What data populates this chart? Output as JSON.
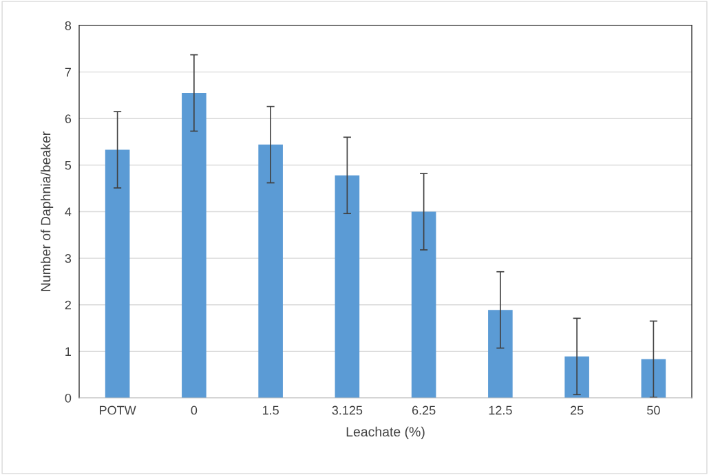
{
  "chart_data": {
    "type": "bar",
    "xlabel": "Leachate (%)",
    "ylabel": "Number of Daphnia/beaker",
    "categories": [
      "POTW",
      "0",
      "1.5",
      "3.125",
      "6.25",
      "12.5",
      "25",
      "50"
    ],
    "values": [
      5.33,
      6.55,
      5.44,
      4.78,
      4.0,
      1.89,
      0.89,
      0.83
    ],
    "errors": [
      0.82,
      0.82,
      0.82,
      0.82,
      0.82,
      0.82,
      0.82,
      0.82
    ],
    "color": "#5b9bd5",
    "ylim": [
      0,
      8
    ],
    "yticks": [
      0,
      1,
      2,
      3,
      4,
      5,
      6,
      7,
      8
    ],
    "grid": "y"
  }
}
